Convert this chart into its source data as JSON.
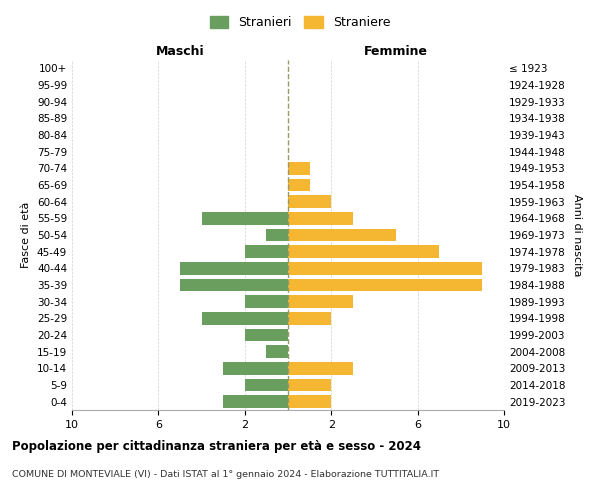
{
  "age_groups": [
    "100+",
    "95-99",
    "90-94",
    "85-89",
    "80-84",
    "75-79",
    "70-74",
    "65-69",
    "60-64",
    "55-59",
    "50-54",
    "45-49",
    "40-44",
    "35-39",
    "30-34",
    "25-29",
    "20-24",
    "15-19",
    "10-14",
    "5-9",
    "0-4"
  ],
  "birth_years": [
    "≤ 1923",
    "1924-1928",
    "1929-1933",
    "1934-1938",
    "1939-1943",
    "1944-1948",
    "1949-1953",
    "1954-1958",
    "1959-1963",
    "1964-1968",
    "1969-1973",
    "1974-1978",
    "1979-1983",
    "1984-1988",
    "1989-1993",
    "1994-1998",
    "1999-2003",
    "2004-2008",
    "2009-2013",
    "2014-2018",
    "2019-2023"
  ],
  "males": [
    0,
    0,
    0,
    0,
    0,
    0,
    0,
    0,
    0,
    4,
    1,
    2,
    5,
    5,
    2,
    4,
    2,
    1,
    3,
    2,
    3
  ],
  "females": [
    0,
    0,
    0,
    0,
    0,
    0,
    1,
    1,
    2,
    3,
    5,
    7,
    9,
    9,
    3,
    2,
    0,
    0,
    3,
    2,
    2
  ],
  "male_color": "#6a9e5e",
  "female_color": "#f5b731",
  "title": "Popolazione per cittadinanza straniera per età e sesso - 2024",
  "subtitle": "COMUNE DI MONTEVIALE (VI) - Dati ISTAT al 1° gennaio 2024 - Elaborazione TUTTITALIA.IT",
  "legend_male": "Stranieri",
  "legend_female": "Straniere",
  "xlabel_left": "Maschi",
  "xlabel_right": "Femmine",
  "ylabel_left": "Fasce di età",
  "ylabel_right": "Anni di nascita",
  "xlim": 10,
  "background_color": "#ffffff",
  "grid_color": "#d0d0d0"
}
